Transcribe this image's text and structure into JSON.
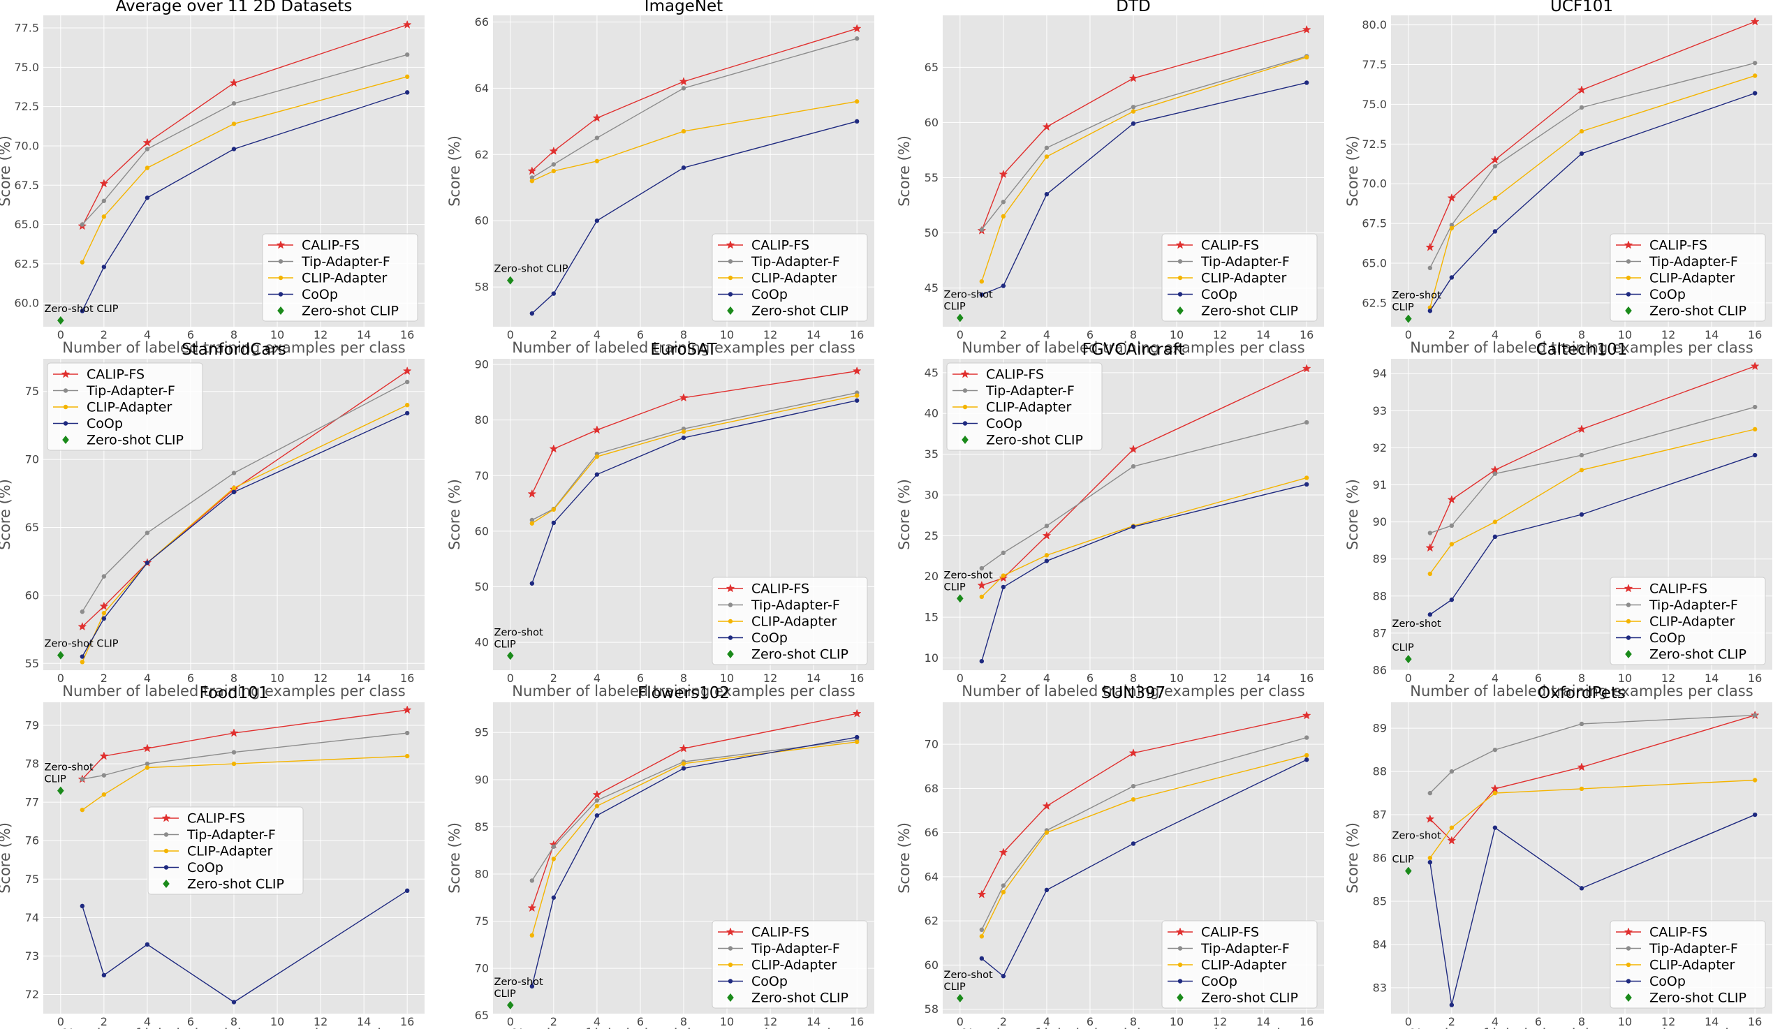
{
  "common": {
    "xlabel": "Number of labeled training examples per class",
    "ylabel": "Score (%)",
    "xticks": [
      0,
      2,
      4,
      6,
      8,
      10,
      12,
      14,
      16
    ],
    "xlim": [
      -0.8,
      16.8
    ],
    "methods": [
      {
        "name": "CALIP-FS",
        "color": "#e0302f",
        "marker": "star"
      },
      {
        "name": "Tip-Adapter-F",
        "color": "#8c8c8c",
        "marker": "circle"
      },
      {
        "name": "CLIP-Adapter",
        "color": "#f4b400",
        "marker": "circle"
      },
      {
        "name": "CoOp",
        "color": "#1f2a80",
        "marker": "circle"
      },
      {
        "name": "Zero-shot CLIP",
        "color": "#1a8a1a",
        "marker": "diamond"
      }
    ],
    "shots": [
      1,
      2,
      4,
      8,
      16
    ]
  },
  "chart_data": [
    {
      "type": "line",
      "title": "Average over 11 2D Datasets",
      "ylim": [
        58.5,
        78.3
      ],
      "yticks": [
        60.0,
        62.5,
        65.0,
        67.5,
        70.0,
        72.5,
        75.0,
        77.5
      ],
      "ytick_labels": [
        "60.0",
        "62.5",
        "65.0",
        "67.5",
        "70.0",
        "72.5",
        "75.0",
        "77.5"
      ],
      "legend": "bottom-right",
      "series": [
        {
          "name": "CALIP-FS",
          "values": [
            64.9,
            67.6,
            70.2,
            74.0,
            77.7
          ]
        },
        {
          "name": "Tip-Adapter-F",
          "values": [
            65.0,
            66.5,
            69.8,
            72.7,
            75.8
          ]
        },
        {
          "name": "CLIP-Adapter",
          "values": [
            62.6,
            65.5,
            68.6,
            71.4,
            74.4
          ]
        },
        {
          "name": "CoOp",
          "values": [
            59.5,
            62.3,
            66.7,
            69.8,
            73.4
          ]
        }
      ],
      "zero_shot": 58.9,
      "zs_label": [
        "Zero-shot CLIP"
      ]
    },
    {
      "type": "line",
      "title": "ImageNet",
      "ylim": [
        56.8,
        66.2
      ],
      "yticks": [
        58,
        60,
        62,
        64,
        66
      ],
      "ytick_labels": [
        "58",
        "60",
        "62",
        "64",
        "66"
      ],
      "legend": "bottom-right",
      "series": [
        {
          "name": "CALIP-FS",
          "values": [
            61.5,
            62.1,
            63.1,
            64.2,
            65.8
          ]
        },
        {
          "name": "Tip-Adapter-F",
          "values": [
            61.3,
            61.7,
            62.5,
            64.0,
            65.5
          ]
        },
        {
          "name": "CLIP-Adapter",
          "values": [
            61.2,
            61.5,
            61.8,
            62.7,
            63.6
          ]
        },
        {
          "name": "CoOp",
          "values": [
            57.2,
            57.8,
            60.0,
            61.6,
            63.0
          ]
        }
      ],
      "zero_shot": 58.2,
      "zs_label": [
        "Zero-shot CLIP"
      ]
    },
    {
      "type": "line",
      "title": "DTD",
      "ylim": [
        41.5,
        69.7
      ],
      "yticks": [
        45,
        50,
        55,
        60,
        65
      ],
      "ytick_labels": [
        "45",
        "50",
        "55",
        "60",
        "65"
      ],
      "legend": "bottom-right",
      "series": [
        {
          "name": "CALIP-FS",
          "values": [
            50.2,
            55.3,
            59.6,
            64.0,
            68.4
          ]
        },
        {
          "name": "Tip-Adapter-F",
          "values": [
            50.3,
            52.8,
            57.7,
            61.4,
            66.0
          ]
        },
        {
          "name": "CLIP-Adapter",
          "values": [
            45.6,
            51.5,
            56.9,
            61.0,
            65.9
          ]
        },
        {
          "name": "CoOp",
          "values": [
            44.4,
            45.2,
            53.5,
            59.9,
            63.6
          ]
        }
      ],
      "zero_shot": 42.3,
      "zs_label": [
        "Zero-shot",
        "CLIP"
      ]
    },
    {
      "type": "line",
      "title": "UCF101",
      "ylim": [
        61.0,
        80.6
      ],
      "yticks": [
        62.5,
        65.0,
        67.5,
        70.0,
        72.5,
        75.0,
        77.5,
        80.0
      ],
      "ytick_labels": [
        "62.5",
        "65.0",
        "67.5",
        "70.0",
        "72.5",
        "75.0",
        "77.5",
        "80.0"
      ],
      "legend": "bottom-right",
      "series": [
        {
          "name": "CALIP-FS",
          "values": [
            66.0,
            69.1,
            71.5,
            75.9,
            80.2
          ]
        },
        {
          "name": "Tip-Adapter-F",
          "values": [
            64.7,
            67.4,
            71.1,
            74.8,
            77.6
          ]
        },
        {
          "name": "CLIP-Adapter",
          "values": [
            62.2,
            67.2,
            69.1,
            73.3,
            76.8
          ]
        },
        {
          "name": "CoOp",
          "values": [
            62.0,
            64.1,
            67.0,
            71.9,
            75.7
          ]
        }
      ],
      "zero_shot": 61.5,
      "zs_label": [
        "Zero-shot",
        "CLIP"
      ]
    },
    {
      "type": "line",
      "title": "StanfordCars",
      "ylim": [
        54.5,
        77.4
      ],
      "yticks": [
        55,
        60,
        65,
        70,
        75
      ],
      "ytick_labels": [
        "55",
        "60",
        "65",
        "70",
        "75"
      ],
      "legend": "top-left",
      "series": [
        {
          "name": "CALIP-FS",
          "values": [
            57.7,
            59.2,
            62.4,
            67.8,
            76.5
          ]
        },
        {
          "name": "Tip-Adapter-F",
          "values": [
            58.8,
            61.4,
            64.6,
            69.0,
            75.7
          ]
        },
        {
          "name": "CLIP-Adapter",
          "values": [
            55.1,
            58.7,
            62.4,
            67.9,
            74.0
          ]
        },
        {
          "name": "CoOp",
          "values": [
            55.5,
            58.3,
            62.4,
            67.6,
            73.4
          ]
        }
      ],
      "zero_shot": 55.6,
      "zs_label": [
        "Zero-shot CLIP"
      ]
    },
    {
      "type": "line",
      "title": "EuroSAT",
      "ylim": [
        35.0,
        91.0
      ],
      "yticks": [
        40,
        50,
        60,
        70,
        80,
        90
      ],
      "ytick_labels": [
        "40",
        "50",
        "60",
        "70",
        "80",
        "90"
      ],
      "legend": "bottom-right",
      "series": [
        {
          "name": "CALIP-FS",
          "values": [
            66.7,
            74.8,
            78.2,
            84.0,
            88.8
          ]
        },
        {
          "name": "Tip-Adapter-F",
          "values": [
            62.0,
            64.0,
            73.9,
            78.4,
            84.9
          ]
        },
        {
          "name": "CLIP-Adapter",
          "values": [
            61.4,
            63.9,
            73.4,
            77.9,
            84.4
          ]
        },
        {
          "name": "CoOp",
          "values": [
            50.6,
            61.5,
            70.2,
            76.8,
            83.5
          ]
        }
      ],
      "zero_shot": 37.6,
      "zs_label": [
        "Zero-shot",
        "CLIP"
      ]
    },
    {
      "type": "line",
      "title": "FGVCAircraft",
      "ylim": [
        8.5,
        46.7
      ],
      "yticks": [
        10,
        15,
        20,
        25,
        30,
        35,
        40,
        45
      ],
      "ytick_labels": [
        "10",
        "15",
        "20",
        "25",
        "30",
        "35",
        "40",
        "45"
      ],
      "legend": "top-left",
      "series": [
        {
          "name": "CALIP-FS",
          "values": [
            18.9,
            19.8,
            25.0,
            35.6,
            45.5
          ]
        },
        {
          "name": "Tip-Adapter-F",
          "values": [
            21.0,
            22.9,
            26.2,
            33.5,
            38.9
          ]
        },
        {
          "name": "CLIP-Adapter",
          "values": [
            17.5,
            20.1,
            22.6,
            26.2,
            32.1
          ]
        },
        {
          "name": "CoOp",
          "values": [
            9.6,
            18.7,
            21.9,
            26.1,
            31.3
          ]
        }
      ],
      "zero_shot": 17.3,
      "zs_label": [
        "Zero-shot",
        "CLIP"
      ]
    },
    {
      "type": "line",
      "title": "Caltech101",
      "ylim": [
        86.0,
        94.4
      ],
      "yticks": [
        86,
        87,
        88,
        89,
        90,
        91,
        92,
        93,
        94
      ],
      "ytick_labels": [
        "86",
        "87",
        "88",
        "89",
        "90",
        "91",
        "92",
        "93",
        "94"
      ],
      "legend": "bottom-right",
      "series": [
        {
          "name": "CALIP-FS",
          "values": [
            89.3,
            90.6,
            91.4,
            92.5,
            94.2
          ]
        },
        {
          "name": "Tip-Adapter-F",
          "values": [
            89.7,
            89.9,
            91.3,
            91.8,
            93.1
          ]
        },
        {
          "name": "CLIP-Adapter",
          "values": [
            88.6,
            89.4,
            90.0,
            91.4,
            92.5
          ]
        },
        {
          "name": "CoOp",
          "values": [
            87.5,
            87.9,
            89.6,
            90.2,
            91.8
          ]
        }
      ],
      "zero_shot": 86.3,
      "zs_label": [
        "Zero-shot",
        "",
        "CLIP"
      ]
    },
    {
      "type": "line",
      "title": "Food101",
      "ylim": [
        71.5,
        79.6
      ],
      "yticks": [
        72,
        73,
        74,
        75,
        76,
        77,
        78,
        79
      ],
      "ytick_labels": [
        "72",
        "73",
        "74",
        "75",
        "76",
        "77",
        "78",
        "79"
      ],
      "legend": "center",
      "series": [
        {
          "name": "CALIP-FS",
          "values": [
            77.6,
            78.2,
            78.4,
            78.8,
            79.4
          ]
        },
        {
          "name": "Tip-Adapter-F",
          "values": [
            77.6,
            77.7,
            78.0,
            78.3,
            78.8
          ]
        },
        {
          "name": "CLIP-Adapter",
          "values": [
            76.8,
            77.2,
            77.9,
            78.0,
            78.2
          ]
        },
        {
          "name": "CoOp",
          "values": [
            74.3,
            72.5,
            73.3,
            71.8,
            74.7
          ]
        }
      ],
      "zero_shot": 77.3,
      "zs_label": [
        "Zero-shot",
        "CLIP"
      ]
    },
    {
      "type": "line",
      "title": "Flowers102",
      "ylim": [
        65.2,
        98.2
      ],
      "yticks": [
        65,
        70,
        75,
        80,
        85,
        90,
        95
      ],
      "ytick_labels": [
        "65",
        "70",
        "75",
        "80",
        "85",
        "90",
        "95"
      ],
      "legend": "bottom-right",
      "series": [
        {
          "name": "CALIP-FS",
          "values": [
            76.4,
            83.1,
            88.4,
            93.3,
            97.0
          ]
        },
        {
          "name": "Tip-Adapter-F",
          "values": [
            79.3,
            82.9,
            87.8,
            91.9,
            94.2
          ]
        },
        {
          "name": "CLIP-Adapter",
          "values": [
            73.5,
            81.6,
            87.2,
            91.7,
            94.0
          ]
        },
        {
          "name": "CoOp",
          "values": [
            68.1,
            77.5,
            86.2,
            91.2,
            94.5
          ]
        }
      ],
      "zero_shot": 66.1,
      "zs_label": [
        "Zero-shot",
        "CLIP"
      ]
    },
    {
      "type": "line",
      "title": "SUN397",
      "ylim": [
        57.8,
        71.9
      ],
      "yticks": [
        58,
        60,
        62,
        64,
        66,
        68,
        70
      ],
      "ytick_labels": [
        "58",
        "60",
        "62",
        "64",
        "66",
        "68",
        "70"
      ],
      "legend": "bottom-right",
      "series": [
        {
          "name": "CALIP-FS",
          "values": [
            63.2,
            65.1,
            67.2,
            69.6,
            71.3
          ]
        },
        {
          "name": "Tip-Adapter-F",
          "values": [
            61.6,
            63.6,
            66.1,
            68.1,
            70.3
          ]
        },
        {
          "name": "CLIP-Adapter",
          "values": [
            61.3,
            63.3,
            66.0,
            67.5,
            69.5
          ]
        },
        {
          "name": "CoOp",
          "values": [
            60.3,
            59.5,
            63.4,
            65.5,
            69.3
          ]
        }
      ],
      "zero_shot": 58.5,
      "zs_label": [
        "Zero-shot",
        "CLIP"
      ]
    },
    {
      "type": "line",
      "title": "OxfordPets",
      "ylim": [
        82.4,
        89.6
      ],
      "yticks": [
        83,
        84,
        85,
        86,
        87,
        88,
        89
      ],
      "ytick_labels": [
        "83",
        "84",
        "85",
        "86",
        "87",
        "88",
        "89"
      ],
      "legend": "bottom-right",
      "series": [
        {
          "name": "CALIP-FS",
          "values": [
            86.9,
            86.4,
            87.6,
            88.1,
            89.3
          ]
        },
        {
          "name": "Tip-Adapter-F",
          "values": [
            87.5,
            88.0,
            88.5,
            89.1,
            89.3
          ]
        },
        {
          "name": "CLIP-Adapter",
          "values": [
            86.0,
            86.7,
            87.5,
            87.6,
            87.8
          ]
        },
        {
          "name": "CoOp",
          "values": [
            85.9,
            82.6,
            86.7,
            85.3,
            87.0
          ]
        }
      ],
      "zero_shot": 85.7,
      "zs_label": [
        "Zero-shot",
        "",
        "CLIP"
      ]
    }
  ]
}
